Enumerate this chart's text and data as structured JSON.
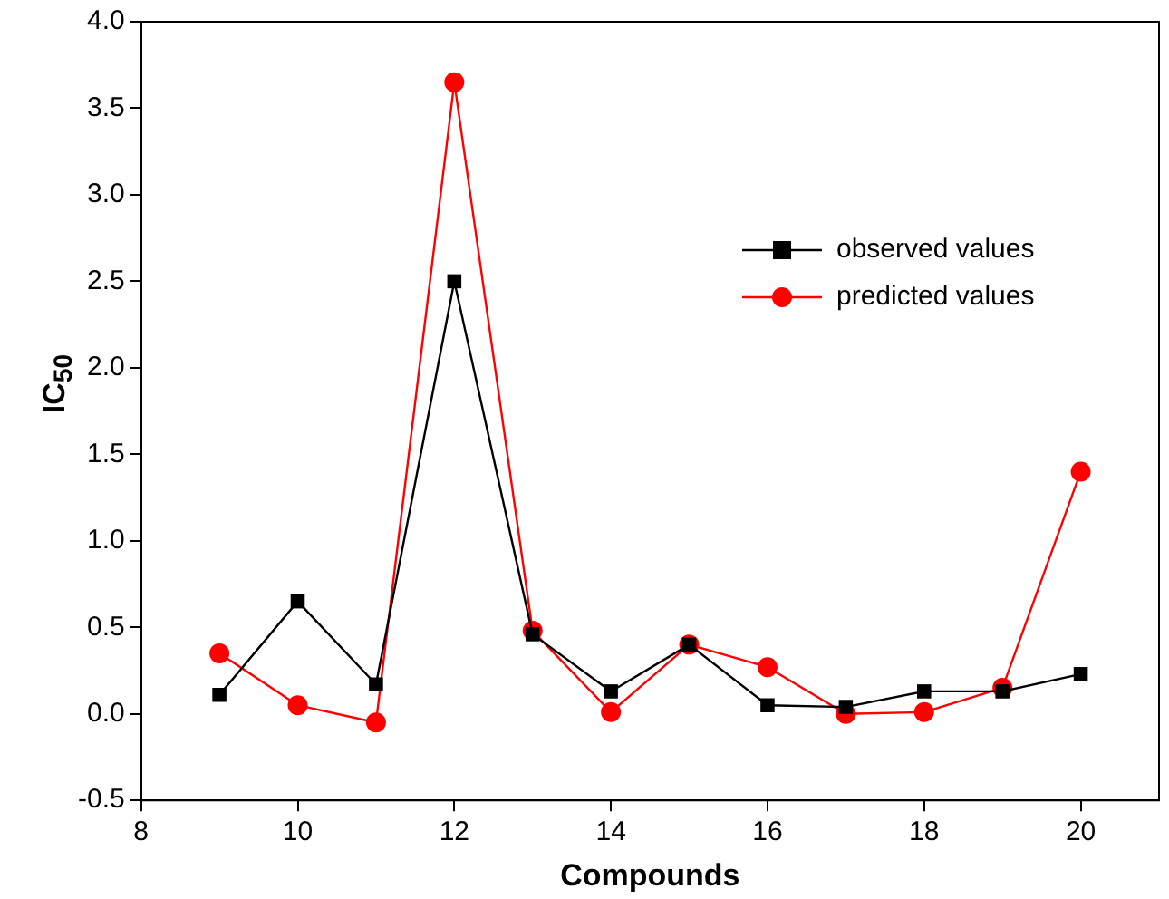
{
  "chart_data": {
    "type": "line",
    "xlabel": "Compounds",
    "ylabel": "IC$_{50}$",
    "x": [
      9,
      10,
      11,
      12,
      13,
      14,
      15,
      16,
      17,
      18,
      19,
      20
    ],
    "series": [
      {
        "name": "observed values",
        "color": "#000000",
        "marker": "square",
        "values": [
          0.11,
          0.65,
          0.17,
          2.5,
          0.46,
          0.13,
          0.4,
          0.05,
          0.04,
          0.13,
          0.13,
          0.23
        ]
      },
      {
        "name": "predicted values",
        "color": "#ff0000",
        "marker": "circle",
        "values": [
          0.35,
          0.05,
          -0.05,
          3.65,
          0.48,
          0.01,
          0.4,
          0.27,
          0.0,
          0.01,
          0.15,
          1.4
        ]
      }
    ],
    "xlim": [
      8,
      21
    ],
    "xticks": [
      8,
      10,
      12,
      14,
      16,
      18,
      20
    ],
    "ylim": [
      -0.5,
      4.0
    ],
    "yticks": [
      {
        "value": -0.5,
        "label": "-0.5"
      },
      {
        "value": 0,
        "label": "0.0"
      },
      {
        "value": 0.5,
        "label": "0.5"
      },
      {
        "value": 1,
        "label": "1.0"
      },
      {
        "value": 1.5,
        "label": "1.5"
      },
      {
        "value": 2,
        "label": "2.0"
      },
      {
        "value": 2.5,
        "label": "2.5"
      },
      {
        "value": 3,
        "label": "3.0"
      },
      {
        "value": 3.5,
        "label": "3.5"
      },
      {
        "value": 4,
        "label": "4.0"
      }
    ],
    "legend": "top right",
    "grid": false
  }
}
